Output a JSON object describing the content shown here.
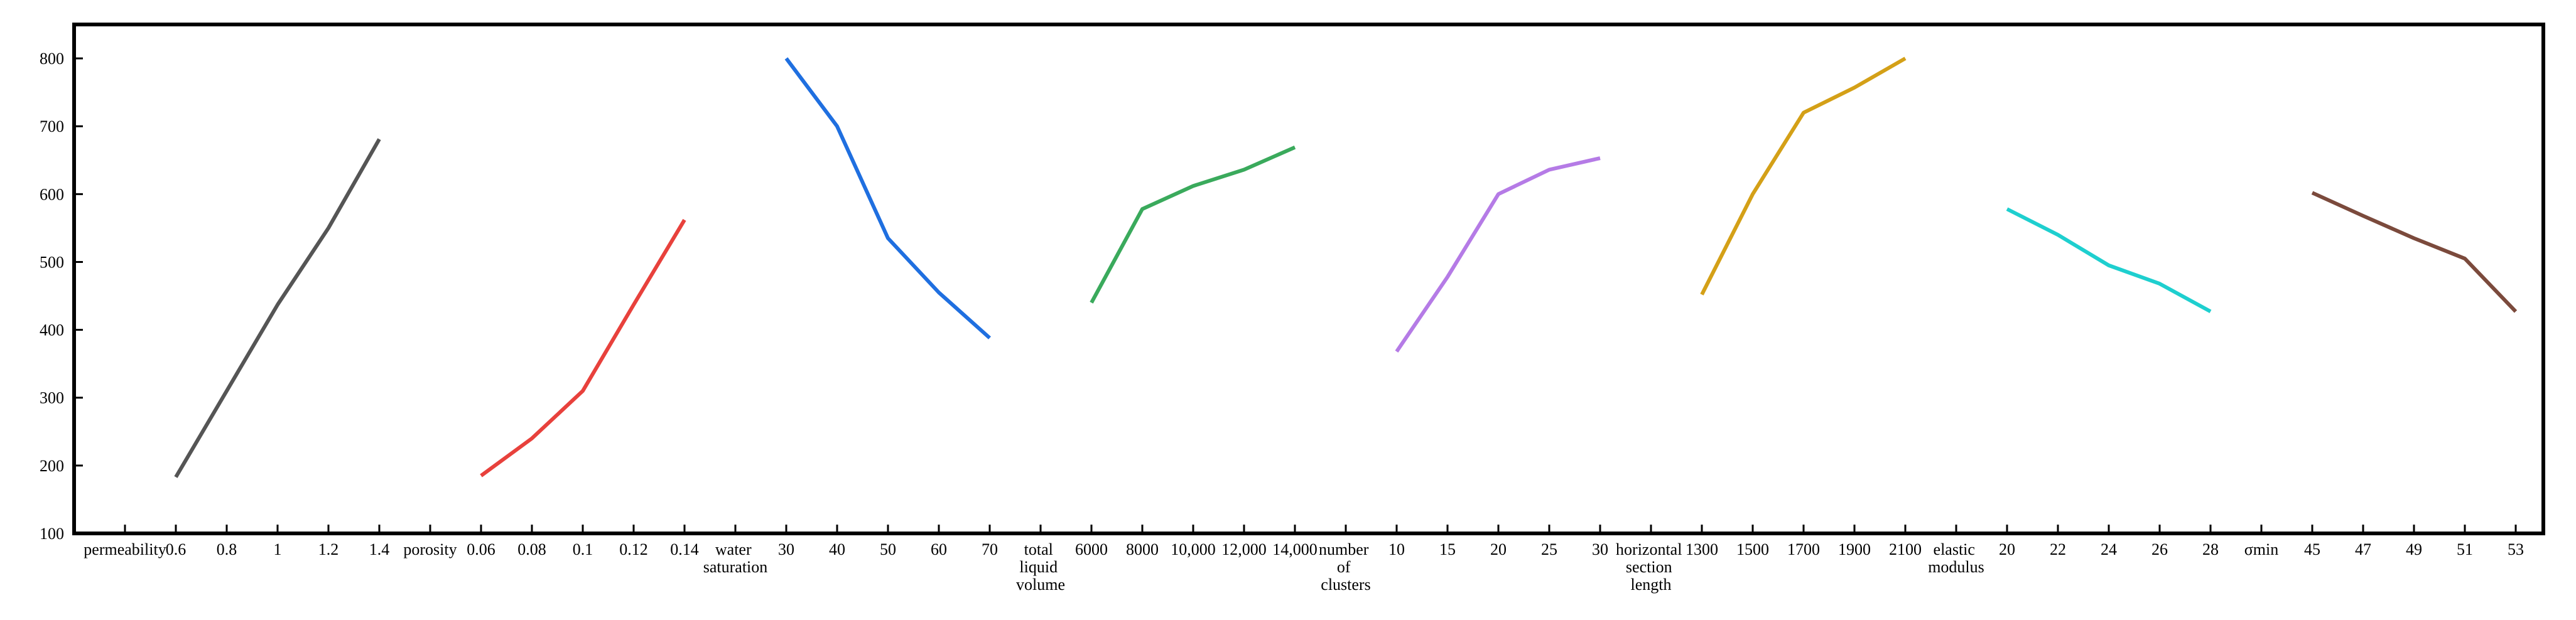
{
  "chart_data": {
    "type": "line",
    "categories": [
      "permeability",
      "0.6",
      "0.8",
      "1",
      "1.2",
      "1.4",
      "porosity",
      "0.06",
      "0.08",
      "0.1",
      "0.12",
      "0.14",
      "water saturation",
      "30",
      "40",
      "50",
      "60",
      "70",
      "total liquid volume",
      "6000",
      "8000",
      "10,000",
      "12,000",
      "14,000",
      "number of clusters",
      "10",
      "15",
      "20",
      "25",
      "30",
      "horizontal section length",
      "1300",
      "1500",
      "1700",
      "1900",
      "2100",
      "elastic modulus",
      "20",
      "22",
      "24",
      "26",
      "28",
      "σmin",
      "45",
      "47",
      "49",
      "51",
      "53"
    ],
    "series": [
      {
        "color": "#555555",
        "values": [
          null,
          183,
          310,
          437,
          550,
          681,
          null,
          null,
          null,
          null,
          null,
          null,
          null,
          null,
          null,
          null,
          null,
          null,
          null,
          null,
          null,
          null,
          null,
          null,
          null,
          null,
          null,
          null,
          null,
          null,
          null,
          null,
          null,
          null,
          null,
          null,
          null,
          null,
          null,
          null,
          null,
          null,
          null,
          null,
          null,
          null,
          null,
          null
        ]
      },
      {
        "color": "#e8413c",
        "values": [
          null,
          null,
          null,
          null,
          null,
          null,
          null,
          185,
          240,
          310,
          437,
          562,
          null,
          null,
          null,
          null,
          null,
          null,
          null,
          null,
          null,
          null,
          null,
          null,
          null,
          null,
          null,
          null,
          null,
          null,
          null,
          null,
          null,
          null,
          null,
          null,
          null,
          null,
          null,
          null,
          null,
          null,
          null,
          null,
          null,
          null,
          null,
          null
        ]
      },
      {
        "color": "#1f6fe0",
        "values": [
          null,
          null,
          null,
          null,
          null,
          null,
          null,
          null,
          null,
          null,
          null,
          null,
          null,
          800,
          700,
          535,
          455,
          388,
          null,
          null,
          null,
          null,
          null,
          null,
          null,
          null,
          null,
          null,
          null,
          null,
          null,
          null,
          null,
          null,
          null,
          null,
          null,
          null,
          null,
          null,
          null,
          null,
          null,
          null,
          null,
          null,
          null,
          null
        ]
      },
      {
        "color": "#3aaa5c",
        "values": [
          null,
          null,
          null,
          null,
          null,
          null,
          null,
          null,
          null,
          null,
          null,
          null,
          null,
          null,
          null,
          null,
          null,
          null,
          null,
          440,
          578,
          612,
          636,
          669,
          null,
          null,
          null,
          null,
          null,
          null,
          null,
          null,
          null,
          null,
          null,
          null,
          null,
          null,
          null,
          null,
          null,
          null,
          null,
          null,
          null,
          null,
          null,
          null
        ]
      },
      {
        "color": "#b57be6",
        "values": [
          null,
          null,
          null,
          null,
          null,
          null,
          null,
          null,
          null,
          null,
          null,
          null,
          null,
          null,
          null,
          null,
          null,
          null,
          null,
          null,
          null,
          null,
          null,
          null,
          null,
          368,
          478,
          600,
          636,
          653,
          null,
          null,
          null,
          null,
          null,
          null,
          null,
          null,
          null,
          null,
          null,
          null,
          null,
          null,
          null,
          null,
          null,
          null
        ]
      },
      {
        "color": "#d4a017",
        "values": [
          null,
          null,
          null,
          null,
          null,
          null,
          null,
          null,
          null,
          null,
          null,
          null,
          null,
          null,
          null,
          null,
          null,
          null,
          null,
          null,
          null,
          null,
          null,
          null,
          null,
          null,
          null,
          null,
          null,
          null,
          null,
          452,
          600,
          720,
          757,
          800,
          null,
          null,
          null,
          null,
          null,
          null,
          null,
          null,
          null,
          null,
          null,
          null
        ]
      },
      {
        "color": "#1ecfcf",
        "values": [
          null,
          null,
          null,
          null,
          null,
          null,
          null,
          null,
          null,
          null,
          null,
          null,
          null,
          null,
          null,
          null,
          null,
          null,
          null,
          null,
          null,
          null,
          null,
          null,
          null,
          null,
          null,
          null,
          null,
          null,
          null,
          null,
          null,
          null,
          null,
          null,
          null,
          578,
          540,
          495,
          468,
          427,
          null,
          null,
          null,
          null,
          null,
          null
        ]
      },
      {
        "color": "#7b4a3c",
        "values": [
          null,
          null,
          null,
          null,
          null,
          null,
          null,
          null,
          null,
          null,
          null,
          null,
          null,
          null,
          null,
          null,
          null,
          null,
          null,
          null,
          null,
          null,
          null,
          null,
          null,
          null,
          null,
          null,
          null,
          null,
          null,
          null,
          null,
          null,
          null,
          null,
          null,
          null,
          null,
          null,
          null,
          null,
          null,
          602,
          568,
          535,
          505,
          427
        ]
      }
    ],
    "ylim": [
      100,
      850
    ],
    "yticks": [
      100,
      200,
      300,
      400,
      500,
      600,
      700,
      800
    ]
  }
}
